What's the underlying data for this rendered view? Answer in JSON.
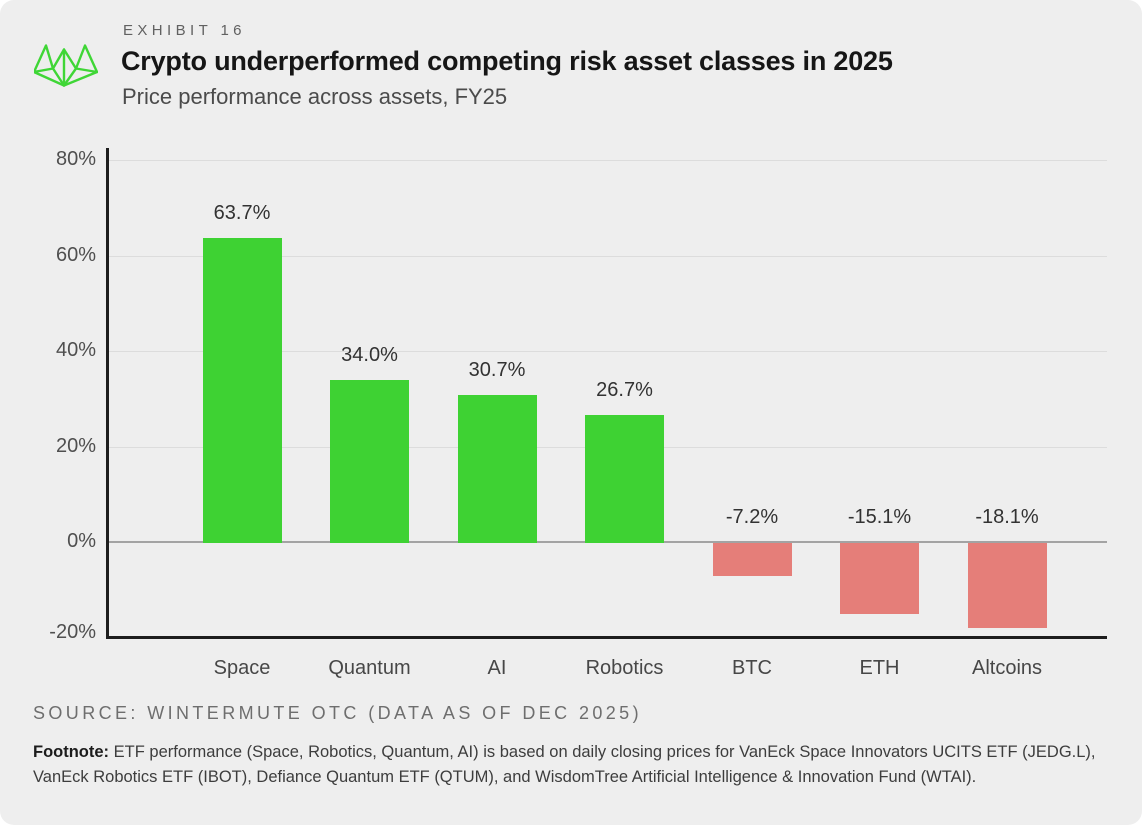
{
  "header": {
    "logo_icon": "wintermute-logo",
    "exhibit_label": "EXHIBIT 16",
    "title": "Crypto underperformed competing risk asset classes in 2025",
    "subtitle": "Price performance across assets, FY25"
  },
  "chart_data": {
    "type": "bar",
    "title": "Crypto underperformed competing risk asset classes in 2025",
    "subtitle": "Price performance across assets, FY25",
    "categories": [
      "Space",
      "Quantum",
      "AI",
      "Robotics",
      "BTC",
      "ETH",
      "Altcoins"
    ],
    "values": [
      63.7,
      34.0,
      30.7,
      26.7,
      -7.2,
      -15.1,
      -18.1
    ],
    "value_labels": [
      "63.7%",
      "34.0%",
      "30.7%",
      "26.7%",
      "-7.2%",
      "-15.1%",
      "-18.1%"
    ],
    "xlabel": "",
    "ylabel": "",
    "ylim": [
      -20,
      80
    ],
    "yticks": [
      80,
      60,
      40,
      20,
      0,
      -20
    ],
    "ytick_labels": [
      "80%",
      "60%",
      "40%",
      "20%",
      "0%",
      "-20%"
    ],
    "grid": true,
    "legend": "none"
  },
  "colors": {
    "card_background": "#eeeeee",
    "positive_bar": "#3ed233",
    "negative_bar": "#e57e79",
    "logo_green": "#3fd636",
    "axis": "#1d1d1d",
    "gridline": "#dcdcdc",
    "zero_line": "#a3a3a3"
  },
  "footer": {
    "source": "SOURCE: WINTERMUTE OTC (DATA AS OF DEC 2025)",
    "footnote_label": "Footnote:",
    "footnote_text": "ETF performance (Space, Robotics, Quantum, AI) is based on daily closing prices for VanEck Space Innovators UCITS ETF (JEDG.L), VanEck Robotics ETF (IBOT), Defiance Quantum ETF (QTUM), and WisdomTree Artificial Intelligence & Innovation Fund (WTAI)."
  }
}
